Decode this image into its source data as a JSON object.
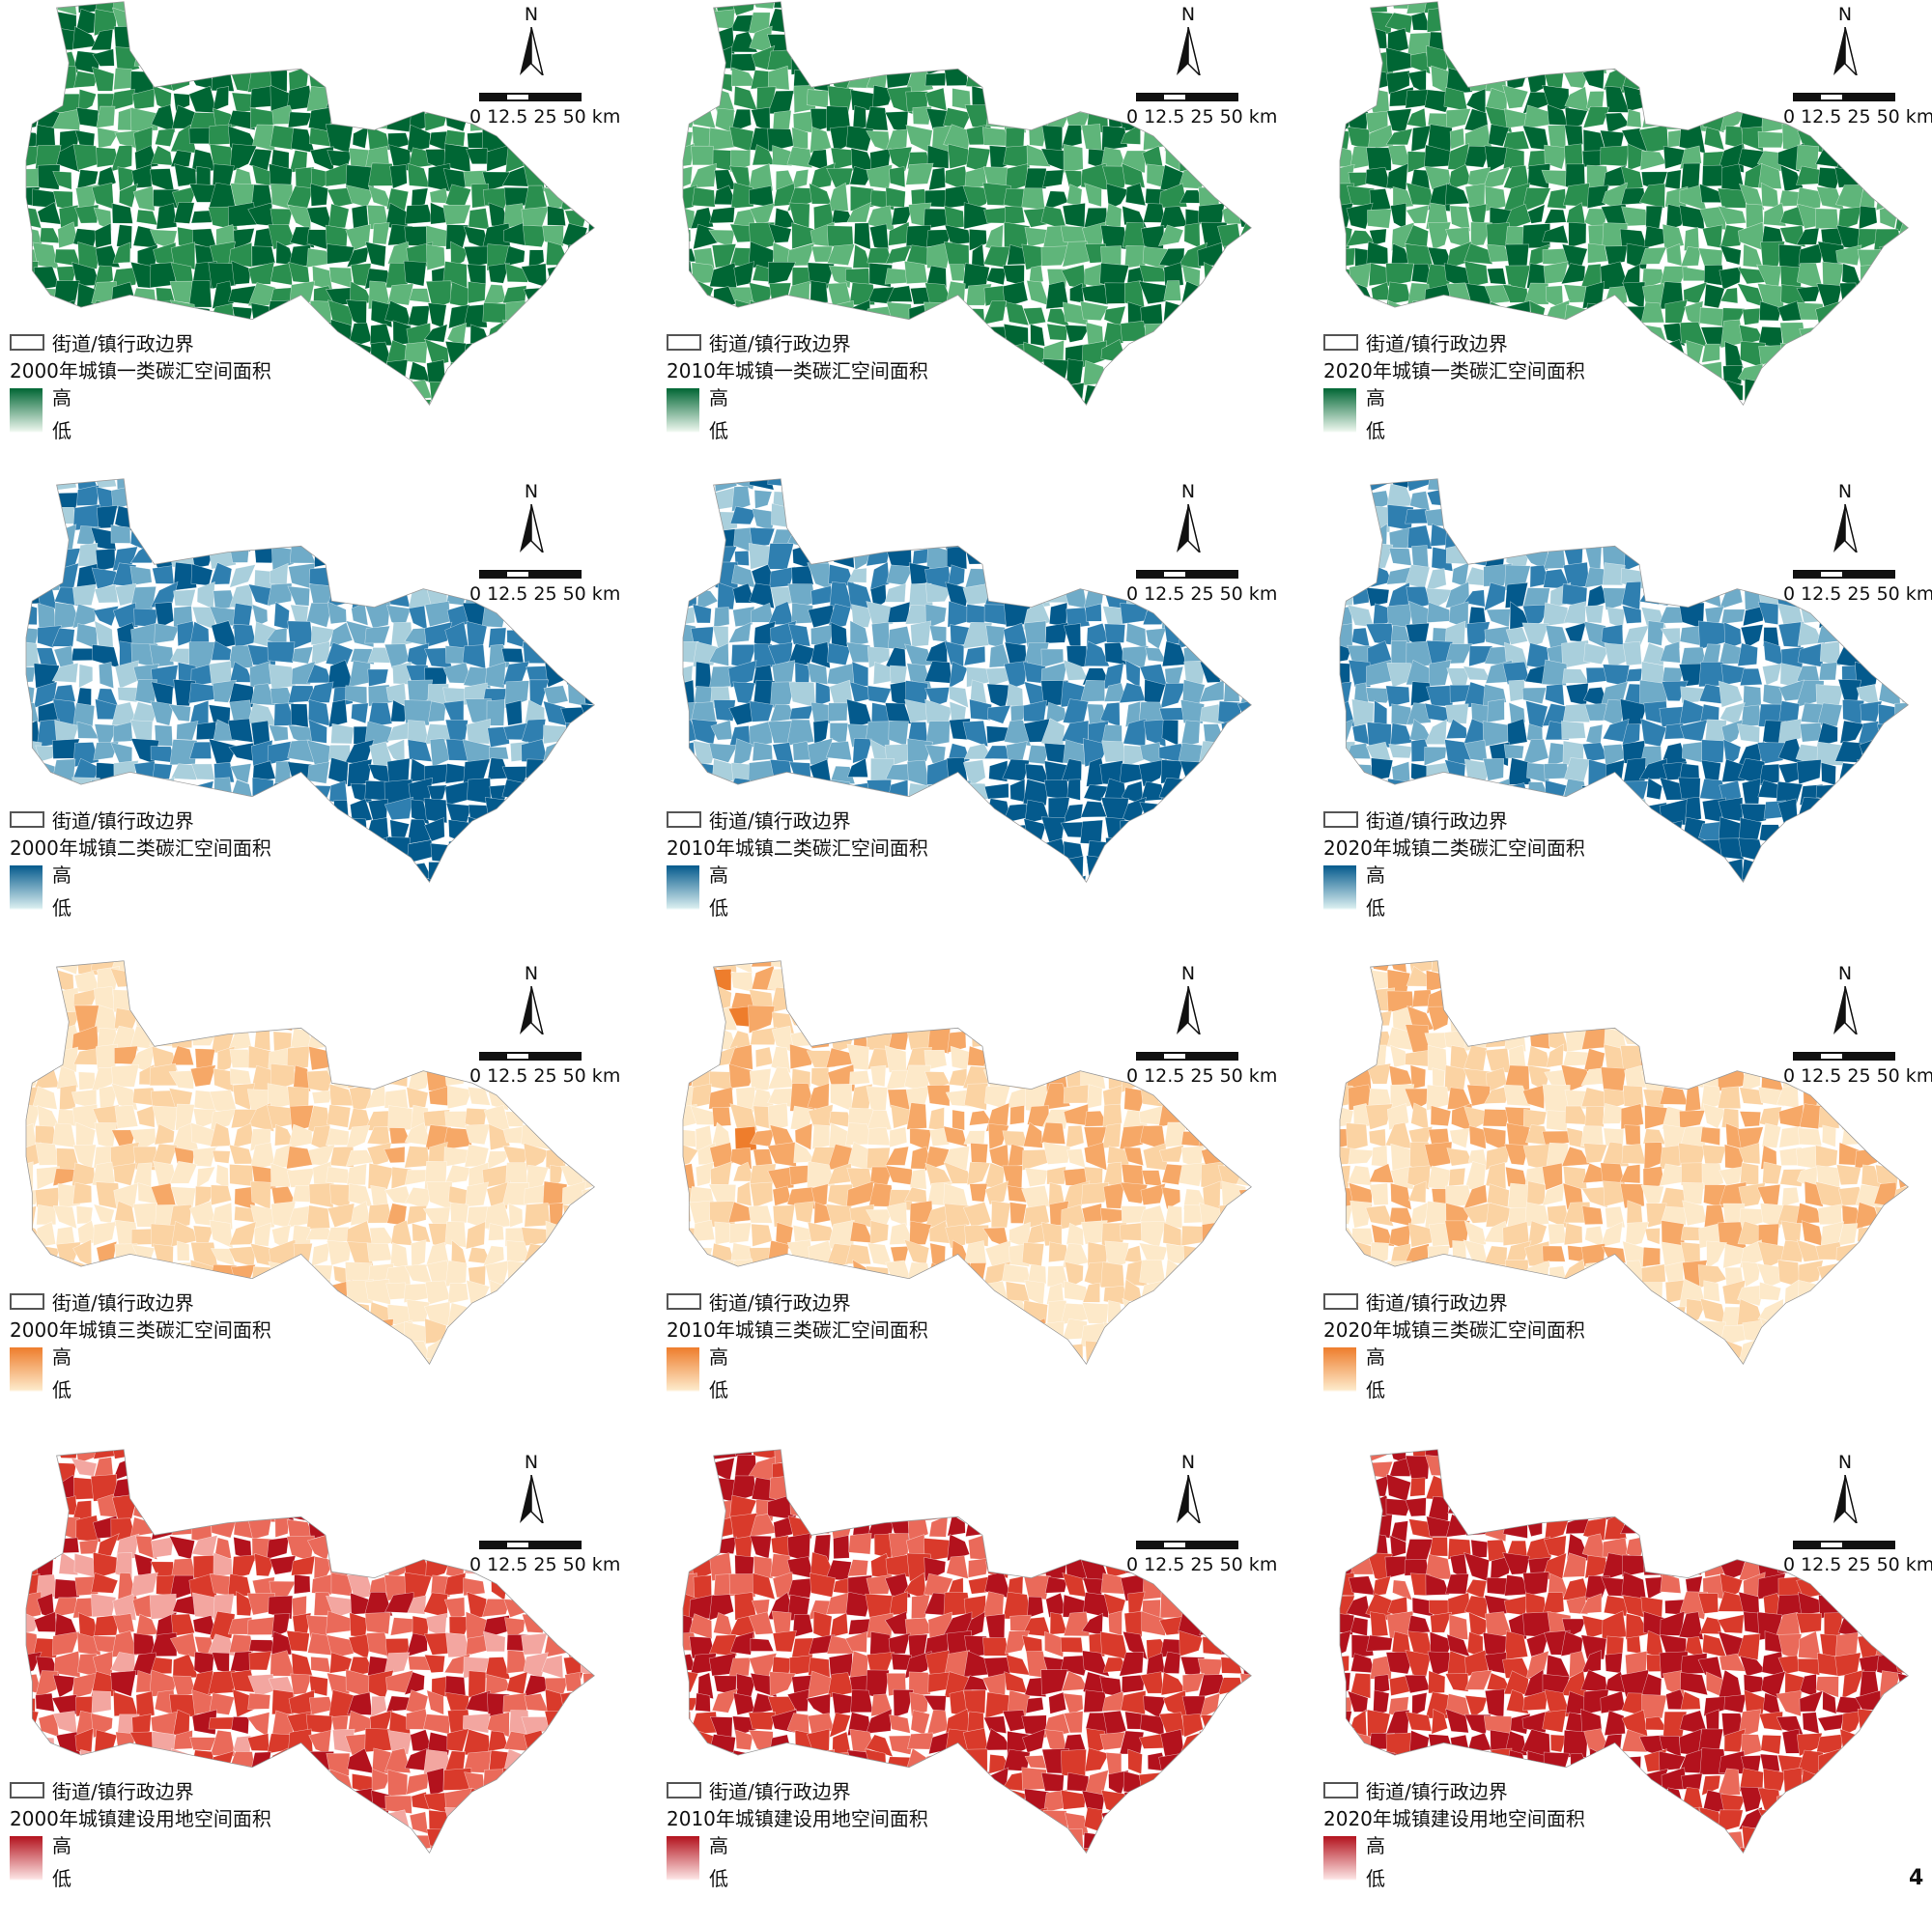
{
  "common": {
    "boundary_label": "街道/镇行政边界",
    "north_label": "N",
    "scale_labels": [
      "0",
      "12.5",
      "25",
      "50 km"
    ],
    "legend_high": "高",
    "legend_low": "低"
  },
  "page_number": "4",
  "panels": [
    {
      "title": "2000年城镇一类碳汇空间面积",
      "ramp": [
        "#e8f4ea",
        "#a9d9b2",
        "#5fb57a",
        "#2a8f4f",
        "#006634"
      ],
      "bias": 0.7
    },
    {
      "title": "2010年城镇一类碳汇空间面积",
      "ramp": [
        "#e8f4ea",
        "#a9d9b2",
        "#5fb57a",
        "#2a8f4f",
        "#006634"
      ],
      "bias": 0.62
    },
    {
      "title": "2020年城镇一类碳汇空间面积",
      "ramp": [
        "#e8f4ea",
        "#a9d9b2",
        "#5fb57a",
        "#2a8f4f",
        "#006634"
      ],
      "bias": 0.58
    },
    {
      "title": "2000年城镇二类碳汇空间面积",
      "ramp": [
        "#d6ecee",
        "#a9cfdc",
        "#6fabc8",
        "#2f7fb0",
        "#045a8d"
      ],
      "bias": 0.4
    },
    {
      "title": "2010年城镇二类碳汇空间面积",
      "ramp": [
        "#d6ecee",
        "#a9cfdc",
        "#6fabc8",
        "#2f7fb0",
        "#045a8d"
      ],
      "bias": 0.4
    },
    {
      "title": "2020年城镇二类碳汇空间面积",
      "ramp": [
        "#d6ecee",
        "#a9cfdc",
        "#6fabc8",
        "#2f7fb0",
        "#045a8d"
      ],
      "bias": 0.4
    },
    {
      "title": "2000年城镇三类碳汇空间面积",
      "ramp": [
        "#fde9c9",
        "#fde9c9",
        "#fbd3a3",
        "#f6a867",
        "#ee7d2c"
      ],
      "bias": 0.12
    },
    {
      "title": "2010年城镇三类碳汇空间面积",
      "ramp": [
        "#fde9c9",
        "#fde9c9",
        "#fbd3a3",
        "#f6a867",
        "#ee7d2c"
      ],
      "bias": 0.3
    },
    {
      "title": "2020年城镇三类碳汇空间面积",
      "ramp": [
        "#fde9c9",
        "#fde9c9",
        "#fbd3a3",
        "#f6a867",
        "#ee7d2c"
      ],
      "bias": 0.28
    },
    {
      "title": "2000年城镇建设用地空间面积",
      "ramp": [
        "#fbe0e0",
        "#f3a6a0",
        "#ea6a5a",
        "#d93a2b",
        "#b3121d"
      ],
      "bias": 0.45
    },
    {
      "title": "2010年城镇建设用地空间面积",
      "ramp": [
        "#fbe0e0",
        "#f3a6a0",
        "#ea6a5a",
        "#d93a2b",
        "#b3121d"
      ],
      "bias": 0.62
    },
    {
      "title": "2020年城镇建设用地空间面积",
      "ramp": [
        "#fbe0e0",
        "#f3a6a0",
        "#ea6a5a",
        "#d93a2b",
        "#b3121d"
      ],
      "bias": 0.72
    }
  ]
}
